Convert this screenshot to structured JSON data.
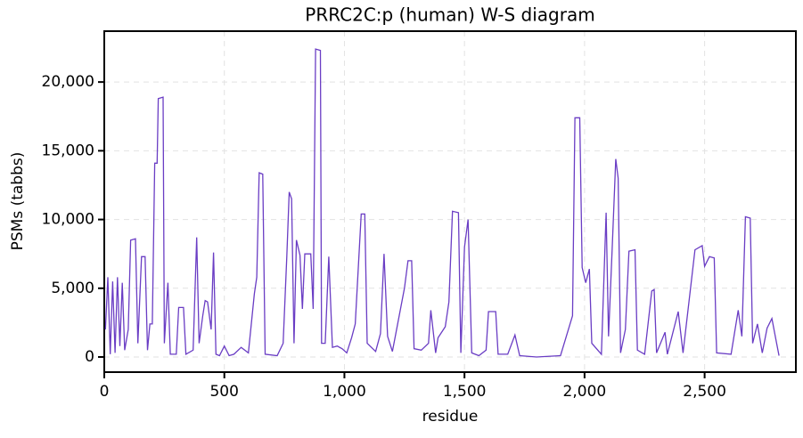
{
  "chart_data": {
    "type": "line",
    "title": "PRRC2C:p (human) W-S diagram",
    "x_label": "residue",
    "y_label": "PSMs (tabbs)",
    "x": [
      5,
      15,
      25,
      35,
      45,
      55,
      65,
      75,
      85,
      100,
      110,
      130,
      140,
      155,
      170,
      180,
      190,
      200,
      210,
      220,
      225,
      245,
      250,
      265,
      275,
      300,
      310,
      330,
      340,
      370,
      385,
      395,
      410,
      420,
      430,
      445,
      455,
      465,
      480,
      500,
      520,
      540,
      570,
      600,
      625,
      635,
      645,
      660,
      670,
      720,
      745,
      760,
      770,
      780,
      790,
      800,
      815,
      825,
      835,
      860,
      870,
      880,
      900,
      905,
      920,
      935,
      950,
      970,
      990,
      1010,
      1030,
      1045,
      1070,
      1085,
      1095,
      1130,
      1150,
      1165,
      1180,
      1200,
      1250,
      1265,
      1280,
      1290,
      1320,
      1350,
      1360,
      1380,
      1390,
      1420,
      1435,
      1450,
      1475,
      1485,
      1500,
      1515,
      1530,
      1560,
      1590,
      1600,
      1630,
      1640,
      1680,
      1710,
      1730,
      1800,
      1900,
      1950,
      1960,
      1980,
      1990,
      2005,
      2020,
      2030,
      2070,
      2090,
      2100,
      2115,
      2130,
      2140,
      2150,
      2170,
      2185,
      2210,
      2220,
      2250,
      2280,
      2290,
      2300,
      2335,
      2345,
      2390,
      2410,
      2460,
      2490,
      2500,
      2520,
      2540,
      2550,
      2610,
      2640,
      2655,
      2670,
      2690,
      2700,
      2720,
      2740,
      2760,
      2780,
      2800,
      2810
    ],
    "series": [
      {
        "name": "PSMs",
        "color": "#6a3dc4",
        "values": [
          2000,
          5800,
          200,
          5500,
          300,
          5800,
          800,
          5400,
          500,
          2000,
          8500,
          8600,
          1000,
          7300,
          7300,
          500,
          2400,
          2400,
          14100,
          14100,
          18800,
          18900,
          1000,
          5400,
          200,
          200,
          3600,
          3600,
          200,
          500,
          8700,
          1000,
          3000,
          4100,
          4000,
          2000,
          7600,
          200,
          100,
          800,
          100,
          200,
          700,
          300,
          4600,
          5800,
          13400,
          13300,
          200,
          100,
          1000,
          7300,
          12000,
          11500,
          1000,
          8500,
          7400,
          3500,
          7500,
          7500,
          3500,
          22400,
          22300,
          1000,
          1000,
          7300,
          700,
          800,
          600,
          300,
          1400,
          2400,
          10400,
          10400,
          1000,
          400,
          1700,
          7500,
          1500,
          400,
          5000,
          7000,
          7000,
          600,
          500,
          1000,
          3400,
          300,
          1400,
          2200,
          4000,
          10600,
          10500,
          300,
          8000,
          10000,
          300,
          100,
          500,
          3300,
          3300,
          200,
          200,
          1600,
          100,
          0,
          100,
          3000,
          17400,
          17400,
          6500,
          5400,
          6400,
          1000,
          200,
          10500,
          1500,
          7900,
          14400,
          13000,
          300,
          2000,
          7700,
          7800,
          500,
          200,
          4800,
          4900,
          300,
          1800,
          200,
          3300,
          300,
          7800,
          8100,
          6600,
          7300,
          7200,
          300,
          200,
          3400,
          1500,
          10200,
          10100,
          1000,
          2400,
          300,
          2100,
          2800,
          1000,
          100
        ]
      }
    ],
    "xlim": [
      0,
      2880
    ],
    "ylim": [
      -1100,
      23700
    ],
    "xticks": [
      0,
      500,
      {
        "value": 1000,
        "label": "1,000"
      },
      {
        "value": 1500,
        "label": "1,500"
      },
      {
        "value": 2000,
        "label": "2,000"
      },
      {
        "value": 2500,
        "label": "2,500"
      }
    ],
    "yticks": [
      0,
      {
        "value": 5000,
        "label": "5,000"
      },
      {
        "value": 10000,
        "label": "10,000"
      },
      {
        "value": 15000,
        "label": "15,000"
      },
      {
        "value": 20000,
        "label": "20,000"
      }
    ],
    "grid": true
  }
}
